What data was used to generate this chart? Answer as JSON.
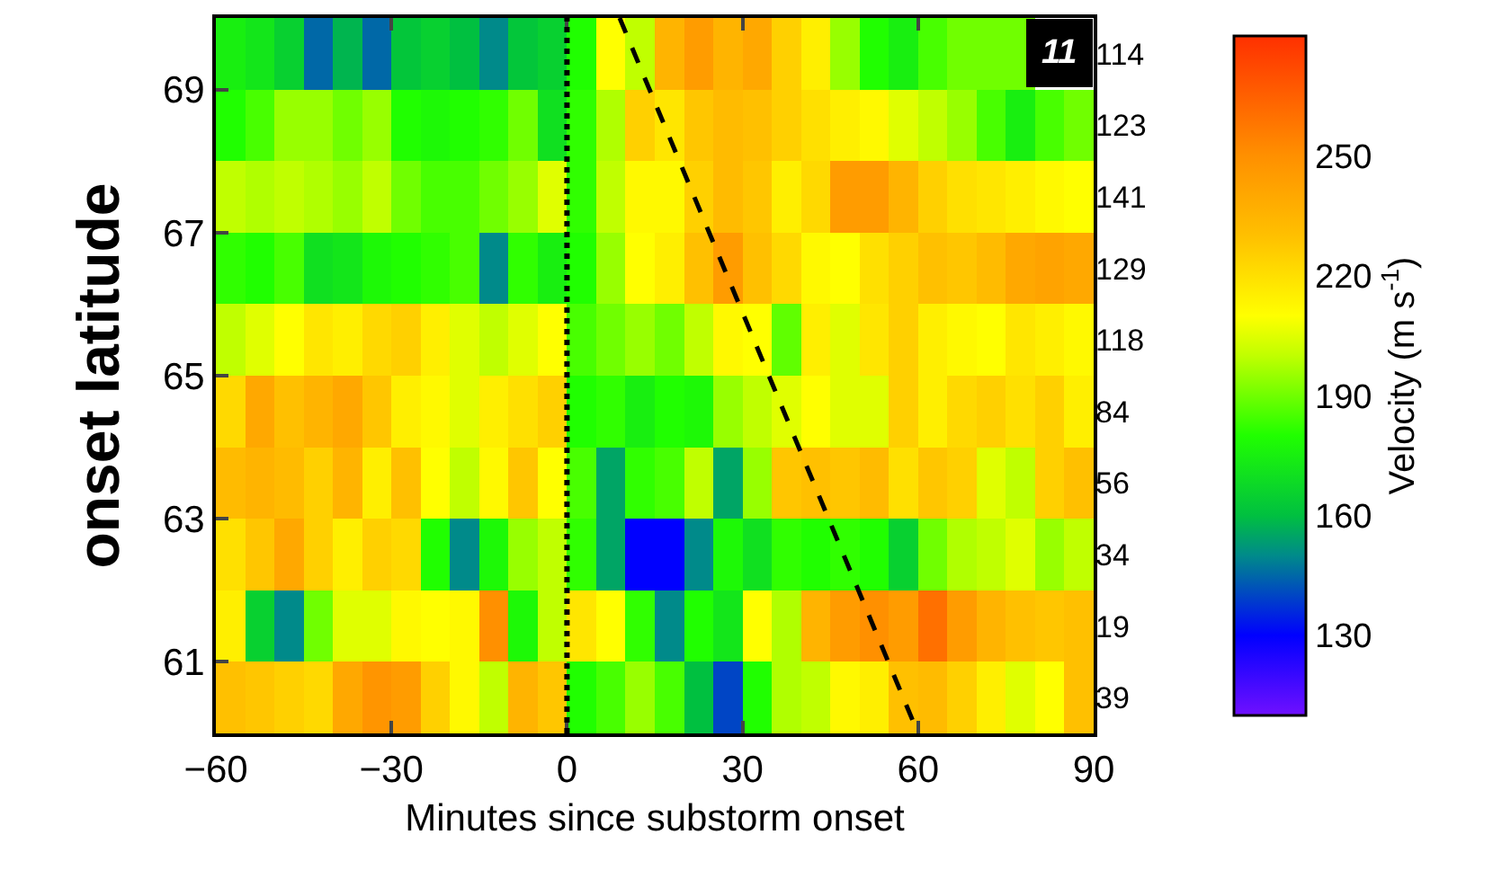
{
  "chart_data": {
    "type": "heatmap",
    "xlabel": "Minutes since substorm onset",
    "ylabel": "onset latitude",
    "clabel": "Velocity (m s$^{-1}$)",
    "x": [
      -57.5,
      -52.5,
      -47.5,
      -42.5,
      -37.5,
      -32.5,
      -27.5,
      -22.5,
      -17.5,
      -12.5,
      -7.5,
      -2.5,
      2.5,
      7.5,
      12.5,
      17.5,
      22.5,
      27.5,
      32.5,
      37.5,
      42.5,
      47.5,
      52.5,
      57.5,
      62.5,
      67.5,
      72.5,
      77.5,
      82.5,
      87.5
    ],
    "y2_categories": [
      "114",
      "123",
      "141",
      "129",
      "118",
      "84",
      "56",
      "34",
      "19",
      "39"
    ],
    "cells": [
      [
        175,
        172,
        165,
        145,
        158,
        145,
        162,
        165,
        160,
        150,
        162,
        165,
        180,
        210,
        200,
        235,
        245,
        235,
        240,
        225,
        215,
        195,
        180,
        175,
        185,
        190,
        190,
        190,
        null,
        null
      ],
      [
        180,
        185,
        195,
        195,
        190,
        195,
        180,
        178,
        180,
        182,
        190,
        170,
        182,
        198,
        225,
        218,
        228,
        232,
        230,
        225,
        220,
        215,
        212,
        205,
        200,
        195,
        185,
        175,
        185,
        190
      ],
      [
        200,
        198,
        200,
        198,
        195,
        200,
        190,
        185,
        185,
        190,
        195,
        205,
        182,
        200,
        212,
        212,
        225,
        232,
        228,
        215,
        222,
        245,
        245,
        235,
        225,
        220,
        218,
        215,
        212,
        210
      ],
      [
        182,
        180,
        185,
        170,
        172,
        178,
        180,
        182,
        185,
        150,
        182,
        175,
        180,
        195,
        210,
        215,
        230,
        245,
        230,
        222,
        212,
        210,
        220,
        225,
        230,
        228,
        232,
        240,
        242,
        240
      ],
      [
        200,
        205,
        210,
        218,
        215,
        222,
        225,
        215,
        205,
        200,
        205,
        210,
        185,
        190,
        195,
        190,
        200,
        212,
        210,
        188,
        215,
        205,
        218,
        225,
        215,
        212,
        210,
        218,
        215,
        212
      ],
      [
        222,
        240,
        230,
        235,
        240,
        228,
        215,
        212,
        205,
        215,
        220,
        225,
        180,
        182,
        175,
        180,
        178,
        195,
        200,
        205,
        210,
        205,
        205,
        225,
        215,
        222,
        225,
        220,
        225,
        215
      ],
      [
        232,
        235,
        232,
        225,
        235,
        215,
        230,
        210,
        200,
        212,
        228,
        210,
        185,
        155,
        182,
        185,
        200,
        155,
        195,
        228,
        230,
        228,
        232,
        220,
        228,
        225,
        205,
        200,
        225,
        230
      ],
      [
        220,
        228,
        240,
        225,
        215,
        225,
        222,
        180,
        150,
        178,
        195,
        200,
        182,
        155,
        130,
        130,
        150,
        178,
        170,
        182,
        180,
        182,
        180,
        165,
        190,
        198,
        200,
        205,
        195,
        200
      ],
      [
        215,
        165,
        150,
        190,
        205,
        205,
        212,
        210,
        212,
        250,
        178,
        200,
        218,
        210,
        182,
        150,
        180,
        172,
        210,
        198,
        235,
        245,
        250,
        245,
        260,
        245,
        235,
        230,
        228,
        230
      ],
      [
        230,
        228,
        225,
        222,
        240,
        248,
        245,
        225,
        212,
        200,
        235,
        228,
        180,
        185,
        195,
        185,
        160,
        140,
        180,
        198,
        200,
        212,
        215,
        230,
        232,
        225,
        215,
        205,
        210,
        230
      ]
    ],
    "clim": [
      110,
      280
    ],
    "cticks": [
      130,
      160,
      190,
      220,
      250
    ],
    "xlim": [
      -60,
      90
    ],
    "xticks": [
      {
        "value": -60,
        "label": "−60"
      },
      {
        "value": -30,
        "label": "−30"
      },
      0,
      30,
      60,
      90
    ],
    "ylim": [
      60,
      70
    ],
    "yticks": [
      61,
      63,
      65,
      67,
      69
    ],
    "series": [
      {
        "type": "line",
        "color": "#000000",
        "line_style": "dashed",
        "x": [
          9,
          60
        ],
        "values": [
          70,
          60
        ]
      }
    ],
    "ref_lines": [
      {
        "axis": "x",
        "value": 0,
        "color": "#000000",
        "line_style": "dotted"
      }
    ],
    "annotations": [
      "11"
    ],
    "grid": false
  }
}
